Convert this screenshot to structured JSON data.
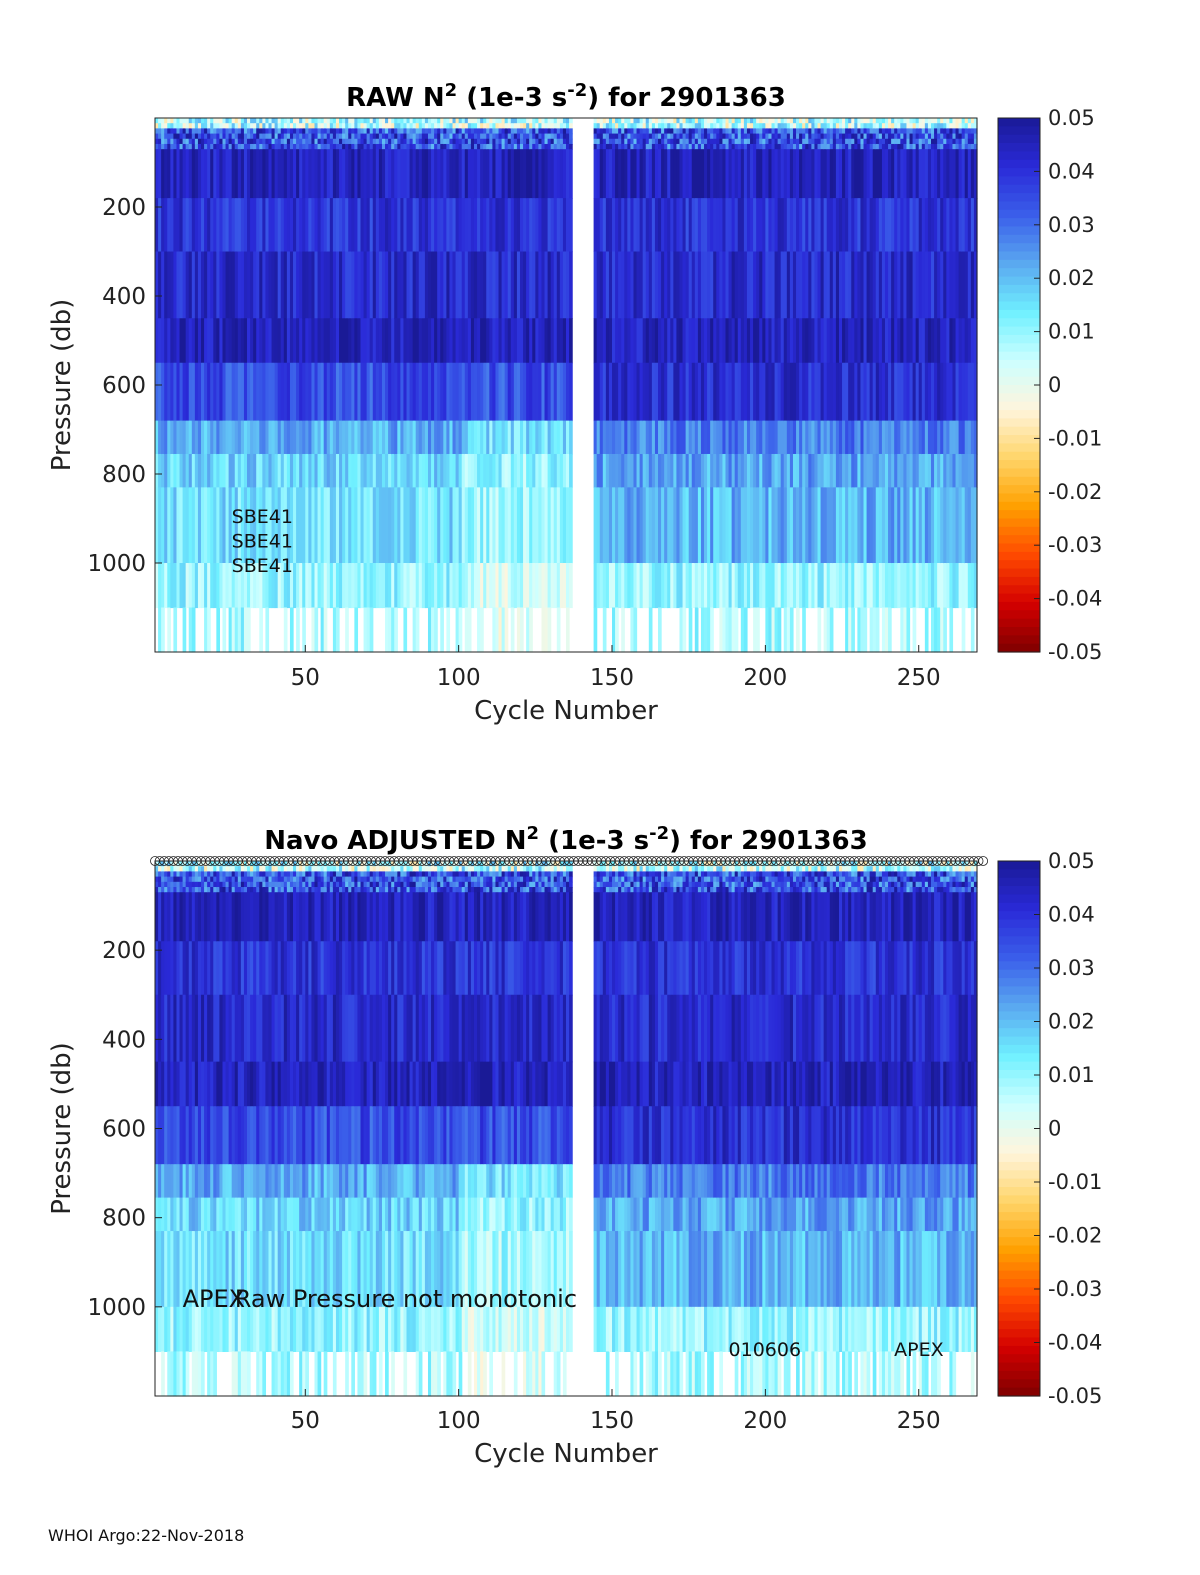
{
  "footer": "WHOI Argo:22-Nov-2018",
  "colormap": {
    "stops": [
      "#7f0000",
      "#d40000",
      "#ff4a00",
      "#ffa000",
      "#ffd56a",
      "#fff5dd",
      "#ccffff",
      "#6ff0ff",
      "#5aa8f0",
      "#3a5eea",
      "#2a2ad8",
      "#1a1a96"
    ],
    "ticks": [
      "0.05",
      "0.04",
      "0.03",
      "0.02",
      "0.01",
      "0",
      "-0.01",
      "-0.02",
      "-0.03",
      "-0.04",
      "-0.05"
    ],
    "range": [
      -0.05,
      0.05
    ]
  },
  "chart_data": [
    {
      "type": "heatmap",
      "title_main": "RAW N",
      "title_sup": "2",
      "title_mid": " (1e-3 s",
      "title_sup2": "-2",
      "title_end": ") for 2901363",
      "xlabel": "Cycle Number",
      "ylabel": "Pressure (db)",
      "xlim": [
        1,
        269
      ],
      "ylim": [
        0,
        1200
      ],
      "xticks": [
        50,
        100,
        150,
        200,
        250
      ],
      "xtick_labels": [
        "50",
        "100",
        "150",
        "200",
        "250"
      ],
      "yticks": [
        200,
        400,
        600,
        800,
        1000
      ],
      "ytick_labels": [
        "200",
        "400",
        "600",
        "800",
        "1000"
      ],
      "clim": [
        -0.05,
        0.05
      ],
      "gap_cycles": [
        137,
        143
      ],
      "pressure_bands": [
        {
          "top": 0,
          "bottom": 70,
          "value": 0.01
        },
        {
          "top": 70,
          "bottom": 180,
          "value": 0.045
        },
        {
          "top": 180,
          "bottom": 300,
          "value": 0.04
        },
        {
          "top": 300,
          "bottom": 450,
          "value": 0.042
        },
        {
          "top": 450,
          "bottom": 550,
          "value": 0.045
        },
        {
          "top": 550,
          "bottom": 680,
          "value": 0.035
        },
        {
          "top": 680,
          "bottom": 755,
          "value": 0.022
        },
        {
          "top": 755,
          "bottom": 830,
          "value": 0.017
        },
        {
          "top": 830,
          "bottom": 1000,
          "value": 0.015
        },
        {
          "top": 1000,
          "bottom": 1100,
          "value": 0.01
        },
        {
          "top": 1100,
          "bottom": 1200,
          "value": 0.008
        }
      ],
      "annotations": [
        {
          "text": "SBE41",
          "x": 26,
          "y": 910
        },
        {
          "text": "SBE41",
          "x": 26,
          "y": 965
        },
        {
          "text": "SBE41",
          "x": 26,
          "y": 1020
        }
      ],
      "top_markers": false
    },
    {
      "type": "heatmap",
      "title_main": "Navo  ADJUSTED N",
      "title_sup": "2",
      "title_mid": " (1e-3 s",
      "title_sup2": "-2",
      "title_end": ") for 2901363",
      "xlabel": "Cycle Number",
      "ylabel": "Pressure (db)",
      "xlim": [
        1,
        269
      ],
      "ylim": [
        0,
        1200
      ],
      "xticks": [
        50,
        100,
        150,
        200,
        250
      ],
      "xtick_labels": [
        "50",
        "100",
        "150",
        "200",
        "250"
      ],
      "yticks": [
        200,
        400,
        600,
        800,
        1000
      ],
      "ytick_labels": [
        "200",
        "400",
        "600",
        "800",
        "1000"
      ],
      "clim": [
        -0.05,
        0.05
      ],
      "gap_cycles": [
        137,
        143
      ],
      "pressure_bands": [
        {
          "top": 0,
          "bottom": 70,
          "value": 0.01
        },
        {
          "top": 70,
          "bottom": 180,
          "value": 0.045
        },
        {
          "top": 180,
          "bottom": 300,
          "value": 0.04
        },
        {
          "top": 300,
          "bottom": 450,
          "value": 0.042
        },
        {
          "top": 450,
          "bottom": 550,
          "value": 0.045
        },
        {
          "top": 550,
          "bottom": 680,
          "value": 0.035
        },
        {
          "top": 680,
          "bottom": 755,
          "value": 0.022
        },
        {
          "top": 755,
          "bottom": 830,
          "value": 0.017
        },
        {
          "top": 830,
          "bottom": 1000,
          "value": 0.015
        },
        {
          "top": 1000,
          "bottom": 1100,
          "value": 0.01
        },
        {
          "top": 1100,
          "bottom": 1200,
          "value": 0.008
        }
      ],
      "annotations": [
        {
          "text": "APEX",
          "x": 10,
          "y": 1000,
          "large": true
        },
        {
          "text": "Raw Pressure not monotonic",
          "x": 27,
          "y": 1000,
          "large": true
        },
        {
          "text": "010606",
          "x": 188,
          "y": 1110
        },
        {
          "text": "APEX",
          "x": 242,
          "y": 1110
        }
      ],
      "top_markers": true
    }
  ]
}
